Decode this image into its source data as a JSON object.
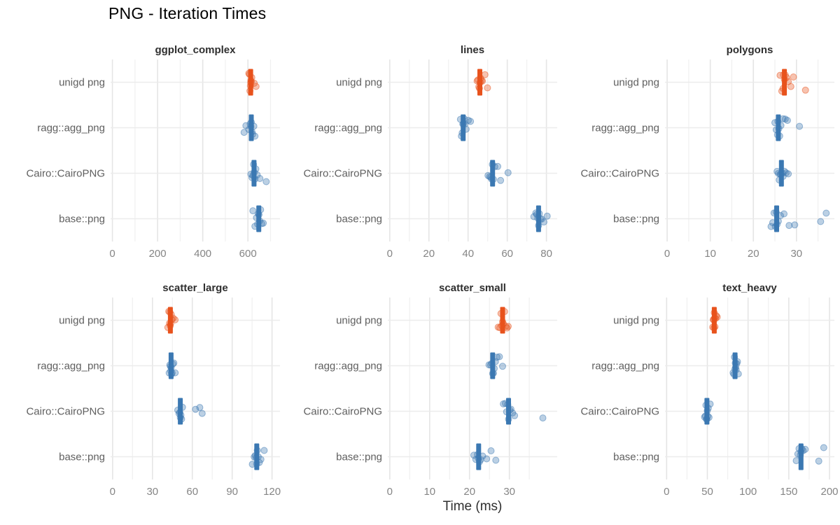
{
  "title": "PNG - Iteration Times",
  "xlabel": "Time (ms)",
  "chart_data": {
    "type": "scatter",
    "title": "PNG - Iteration Times",
    "xlabel": "Time (ms)",
    "ylabel": "",
    "legend_position": "none",
    "grid": true,
    "categories": [
      "unigd png",
      "ragg::agg_png",
      "Cairo::CairoPNG",
      "base::png"
    ],
    "colors": {
      "highlight": "#E8521C",
      "base": "#3B78B2"
    },
    "theme": {
      "grid_major": "#E5E5E5",
      "grid_minor": "#F0F0F0",
      "grid_horizontal": "#EBEBEB",
      "tick_label_color": "#858585",
      "category_label_color": "#5F5F5F",
      "strip_label_color": "#2F2F2F",
      "title_color": "#000000",
      "axis_title_color": "#2F2F2F",
      "point_fill_opacity": 0.35,
      "point_stroke_opacity": 0.5
    },
    "facets": [
      {
        "name": "ggplot_complex",
        "xlim": [
          -8,
          742
        ],
        "major_ticks": [
          0,
          200,
          400,
          600
        ],
        "minor_ticks": [
          100,
          300,
          500,
          700
        ],
        "groups": [
          {
            "renderer": "unigd png",
            "median": 612,
            "points": [
              604,
              607,
              609,
              611,
              612,
              613,
              615,
              617,
              628,
              636
            ]
          },
          {
            "renderer": "ragg::agg_png",
            "median": 615,
            "points": [
              583,
              591,
              604,
              610,
              613,
              615,
              618,
              621,
              626,
              631
            ]
          },
          {
            "renderer": "Cairo::CairoPNG",
            "median": 627,
            "points": [
              613,
              618,
              622,
              625,
              628,
              631,
              635,
              641,
              653,
              681
            ]
          },
          {
            "renderer": "base::png",
            "median": 648,
            "points": [
              622,
              631,
              638,
              643,
              646,
              649,
              652,
              656,
              661,
              668
            ]
          }
        ]
      },
      {
        "name": "lines",
        "xlim": [
          -1,
          85.5
        ],
        "major_ticks": [
          0,
          20,
          40,
          60,
          80
        ],
        "minor_ticks": [
          10,
          30,
          50,
          70
        ],
        "groups": [
          {
            "renderer": "unigd png",
            "median": 46,
            "points": [
              44.6,
              45.1,
              45.5,
              45.8,
              46.1,
              46.4,
              46.8,
              47.3,
              48.6,
              49.9
            ]
          },
          {
            "renderer": "ragg::agg_png",
            "median": 37.5,
            "points": [
              36.1,
              36.6,
              37,
              37.3,
              37.6,
              38,
              38.4,
              39,
              40.1,
              41.2
            ]
          },
          {
            "renderer": "Cairo::CairoPNG",
            "median": 52.5,
            "points": [
              50.2,
              51,
              51.6,
              52,
              52.4,
              52.9,
              53.6,
              55.1,
              56.6,
              60.4
            ]
          },
          {
            "renderer": "base::png",
            "median": 76,
            "points": [
              73.6,
              74.6,
              75.1,
              75.6,
              76,
              76.4,
              77,
              77.6,
              78.7,
              80.4
            ]
          }
        ]
      },
      {
        "name": "polygons",
        "xlim": [
          -0.5,
          38.8
        ],
        "major_ticks": [
          0,
          10,
          20,
          30
        ],
        "minor_ticks": [
          5,
          15,
          25,
          35
        ],
        "groups": [
          {
            "renderer": "unigd png",
            "median": 27.2,
            "points": [
              26.2,
              26.6,
              26.9,
              27,
              27.2,
              27.4,
              27.7,
              28.1,
              28.7,
              29.3,
              32.1
            ]
          },
          {
            "renderer": "ragg::agg_png",
            "median": 25.8,
            "points": [
              25,
              25.3,
              25.6,
              25.7,
              25.9,
              26.1,
              26.4,
              26.9,
              27.4,
              27.9,
              30.7
            ]
          },
          {
            "renderer": "Cairo::CairoPNG",
            "median": 26.5,
            "points": [
              25.5,
              25.8,
              26,
              26.2,
              26.4,
              26.7,
              26.9,
              27.2,
              27.6,
              28.1
            ]
          },
          {
            "renderer": "base::png",
            "median": 25.4,
            "points": [
              24.1,
              24.5,
              24.8,
              25.1,
              25.3,
              25.5,
              25.8,
              26.3,
              27.1,
              28.3,
              29.6,
              35.6,
              36.9
            ]
          }
        ]
      },
      {
        "name": "scatter_large",
        "xlim": [
          -1.5,
          126
        ],
        "major_ticks": [
          0,
          30,
          60,
          90,
          120
        ],
        "minor_ticks": [
          15,
          45,
          75,
          105
        ],
        "groups": [
          {
            "renderer": "unigd png",
            "median": 43.5,
            "points": [
              41.6,
              42.3,
              42.8,
              43.1,
              43.4,
              43.7,
              44.1,
              44.6,
              45.6,
              47
            ]
          },
          {
            "renderer": "ragg::agg_png",
            "median": 44,
            "points": [
              42.6,
              43.1,
              43.5,
              43.8,
              44.1,
              44.4,
              44.8,
              45.3,
              46.1,
              47.1
            ]
          },
          {
            "renderer": "Cairo::CairoPNG",
            "median": 51,
            "points": [
              49.1,
              50,
              50.6,
              51,
              51.4,
              51.9,
              52.6,
              62.4,
              65.6,
              67.4
            ]
          },
          {
            "renderer": "base::png",
            "median": 108.5,
            "points": [
              105.2,
              106.6,
              107.4,
              108,
              108.4,
              108.9,
              109.6,
              110.4,
              111.6,
              114.1
            ]
          }
        ]
      },
      {
        "name": "scatter_small",
        "xlim": [
          -0.5,
          42
        ],
        "major_ticks": [
          0,
          10,
          20,
          30
        ],
        "minor_ticks": [
          5,
          15,
          25,
          35
        ],
        "groups": [
          {
            "renderer": "unigd png",
            "median": 28.3,
            "points": [
              27.2,
              27.6,
              27.9,
              28.1,
              28.3,
              28.5,
              28.8,
              29.1,
              29.4,
              29.7
            ]
          },
          {
            "renderer": "ragg::agg_png",
            "median": 25.8,
            "points": [
              24.9,
              25.3,
              25.6,
              25.8,
              26,
              26.2,
              26.5,
              26.9,
              27.5,
              28.3
            ]
          },
          {
            "renderer": "Cairo::CairoPNG",
            "median": 29.8,
            "points": [
              28.5,
              29,
              29.3,
              29.6,
              29.8,
              30.1,
              30.4,
              30.8,
              31.3,
              38.4
            ]
          },
          {
            "renderer": "base::png",
            "median": 22.3,
            "points": [
              21.1,
              21.6,
              22,
              22.2,
              22.5,
              22.8,
              23.3,
              24.3,
              25.4,
              26.6
            ]
          }
        ]
      },
      {
        "name": "text_heavy",
        "xlim": [
          -2,
          206
        ],
        "major_ticks": [
          0,
          50,
          100,
          150,
          200
        ],
        "minor_ticks": [
          25,
          75,
          125,
          175
        ],
        "groups": [
          {
            "renderer": "unigd png",
            "median": 58.5,
            "points": [
              56.6,
              57.3,
              57.9,
              58.2,
              58.5,
              58.9,
              59.4,
              60.1,
              61,
              62.1
            ]
          },
          {
            "renderer": "ragg::agg_png",
            "median": 84,
            "points": [
              81.6,
              82.6,
              83.3,
              83.9,
              84.3,
              84.8,
              85.4,
              86.1,
              87,
              88.1
            ]
          },
          {
            "renderer": "Cairo::CairoPNG",
            "median": 49.5,
            "points": [
              46.6,
              47.6,
              48.3,
              48.9,
              49.4,
              49.9,
              50.5,
              51.1,
              52.1,
              53.4
            ]
          },
          {
            "renderer": "base::png",
            "median": 165,
            "points": [
              159.2,
              161.1,
              162.6,
              164.1,
              165,
              166.1,
              167.6,
              170.2,
              186.8,
              192.9
            ]
          }
        ]
      }
    ]
  }
}
